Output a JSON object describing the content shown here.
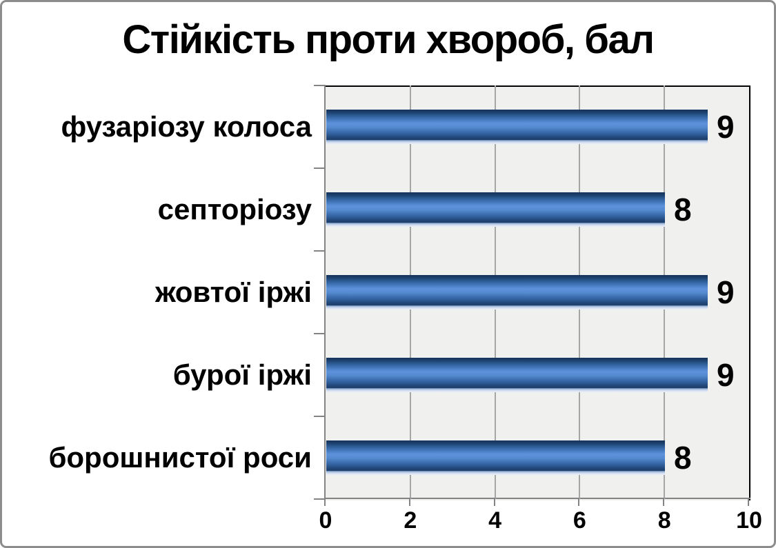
{
  "title": "Стійкість проти хвороб, бал",
  "chart_data": {
    "type": "bar",
    "orientation": "horizontal",
    "title": "Стійкість проти хвороб, бал",
    "categories": [
      "фузаріозу колоса",
      "септоріозу",
      "жовтої іржі",
      "бурої іржі",
      "борошнистої роси"
    ],
    "values": [
      9,
      8,
      9,
      9,
      8
    ],
    "value_labels": [
      "9",
      "8",
      "9",
      "9",
      "8"
    ],
    "xlim": [
      0,
      10
    ],
    "x_ticks": [
      "0",
      "2",
      "4",
      "6",
      "8",
      "10"
    ],
    "grid": true,
    "legend": "none",
    "bar_color_main": "#5e93dc",
    "bar_color_dark": "#15335a",
    "plot_background": "#f0f0ef",
    "gridline_color": "#a6a6a6",
    "axis_color": "#838383",
    "text_color": "#000000"
  }
}
